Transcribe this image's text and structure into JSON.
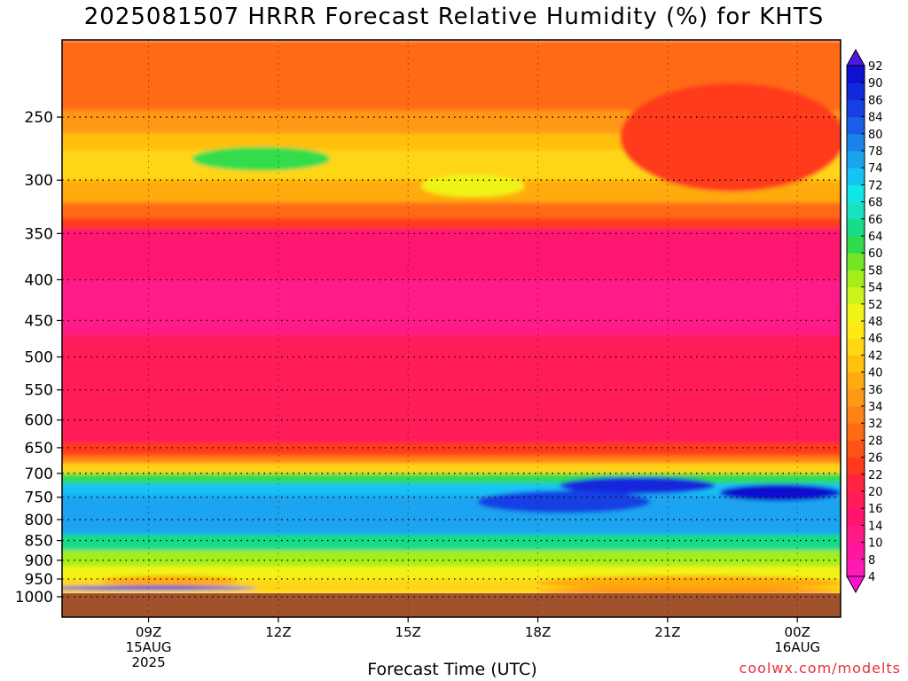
{
  "header": {
    "title": "2025081507 HRRR Forecast Relative Humidity (%) for KHTS"
  },
  "footer": {
    "credit": "coolwx.com/modelts"
  },
  "chart_data": {
    "type": "heatmap",
    "title": "2025081507 HRRR Forecast Relative Humidity (%) for KHTS",
    "xlabel": "Forecast Time (UTC)",
    "ylabel": "",
    "x_ticks": [
      {
        "hour": 9,
        "lines": [
          "09Z",
          "15AUG",
          "2025"
        ]
      },
      {
        "hour": 12,
        "lines": [
          "12Z"
        ]
      },
      {
        "hour": 15,
        "lines": [
          "15Z"
        ]
      },
      {
        "hour": 18,
        "lines": [
          "18Z"
        ]
      },
      {
        "hour": 21,
        "lines": [
          "21Z"
        ]
      },
      {
        "hour": 24,
        "lines": [
          "00Z",
          "16AUG"
        ]
      }
    ],
    "y_ticks": [
      250,
      300,
      350,
      400,
      450,
      500,
      550,
      600,
      650,
      700,
      750,
      800,
      850,
      900,
      950,
      1000
    ],
    "xlim": [
      7,
      25
    ],
    "ylim_hpa": [
      200,
      1000
    ],
    "grid": true,
    "colorbar": {
      "levels": [
        4,
        8,
        10,
        14,
        16,
        20,
        22,
        26,
        28,
        32,
        34,
        36,
        40,
        42,
        46,
        48,
        52,
        54,
        58,
        60,
        64,
        66,
        68,
        72,
        74,
        78,
        80,
        84,
        86,
        90,
        92
      ],
      "colors": [
        "#ff10d0",
        "#ff1ab8",
        "#ff16a0",
        "#ff1a88",
        "#ff1470",
        "#ff1c58",
        "#ff2440",
        "#ff3a1c",
        "#ff5218",
        "#ff6a14",
        "#ff8214",
        "#ff9814",
        "#ffaa10",
        "#ffc010",
        "#ffd614",
        "#ffea18",
        "#f0f418",
        "#ccf41c",
        "#a4ee1c",
        "#74e424",
        "#30dc4c",
        "#18dc88",
        "#18e2c0",
        "#10e6e6",
        "#14c4f4",
        "#1aa4f0",
        "#1c82ec",
        "#1a5ee8",
        "#1640e4",
        "#1228dc",
        "#1010d0",
        "#5018e4"
      ],
      "extend": "both"
    },
    "bands": [
      {
        "p_top": 200,
        "p_bottom": 245,
        "rh": 30
      },
      {
        "p_top": 245,
        "p_bottom": 262,
        "rh": 34
      },
      {
        "p_top": 262,
        "p_bottom": 275,
        "rh": 40
      },
      {
        "p_top": 275,
        "p_bottom": 300,
        "rh": 44
      },
      {
        "p_top": 300,
        "p_bottom": 320,
        "rh": 36
      },
      {
        "p_top": 320,
        "p_bottom": 335,
        "rh": 28
      },
      {
        "p_top": 335,
        "p_bottom": 345,
        "rh": 22
      },
      {
        "p_top": 345,
        "p_bottom": 400,
        "rh": 15
      },
      {
        "p_top": 400,
        "p_bottom": 470,
        "rh": 12
      },
      {
        "p_top": 470,
        "p_bottom": 500,
        "rh": 16
      },
      {
        "p_top": 500,
        "p_bottom": 640,
        "rh": 19
      },
      {
        "p_top": 640,
        "p_bottom": 665,
        "rh": 24
      },
      {
        "p_top": 665,
        "p_bottom": 680,
        "rh": 32
      },
      {
        "p_top": 680,
        "p_bottom": 700,
        "rh": 45
      },
      {
        "p_top": 700,
        "p_bottom": 720,
        "rh": 60
      },
      {
        "p_top": 720,
        "p_bottom": 745,
        "rh": 72
      },
      {
        "p_top": 745,
        "p_bottom": 800,
        "rh": 76
      },
      {
        "p_top": 800,
        "p_bottom": 835,
        "rh": 74
      },
      {
        "p_top": 835,
        "p_bottom": 875,
        "rh": 64
      },
      {
        "p_top": 875,
        "p_bottom": 915,
        "rh": 56
      },
      {
        "p_top": 915,
        "p_bottom": 950,
        "rh": 50
      },
      {
        "p_top": 950,
        "p_bottom": 990,
        "rh": 44
      }
    ],
    "features": [
      {
        "hour": 11.6,
        "p": 282,
        "rh": 60,
        "rx_h": 1.6,
        "ry_p": 10
      },
      {
        "hour": 16.5,
        "p": 305,
        "rh": 50,
        "rx_h": 1.2,
        "ry_p": 10
      },
      {
        "hour": 22.5,
        "p": 265,
        "rh": 24,
        "rx_h": 2.6,
        "ry_p": 45
      },
      {
        "hour": 20.3,
        "p": 725,
        "rh": 86,
        "rx_h": 1.8,
        "ry_p": 18
      },
      {
        "hour": 23.6,
        "p": 740,
        "rh": 90,
        "rx_h": 1.4,
        "ry_p": 18
      },
      {
        "hour": 18.6,
        "p": 760,
        "rh": 84,
        "rx_h": 2.0,
        "ry_p": 25
      },
      {
        "hour": 9.5,
        "p": 955,
        "rh": 36,
        "rx_h": 1.6,
        "ry_p": 15
      },
      {
        "hour": 21.5,
        "p": 960,
        "rh": 38,
        "rx_h": 3.5,
        "ry_p": 20
      },
      {
        "hour": 21.5,
        "p": 985,
        "rh": 34,
        "rx_h": 3.5,
        "ry_p": 12
      },
      {
        "hour": 9.0,
        "p": 975,
        "rh": 88,
        "rx_h": 2.5,
        "ry_p": 6
      }
    ],
    "ground_p": 990
  }
}
